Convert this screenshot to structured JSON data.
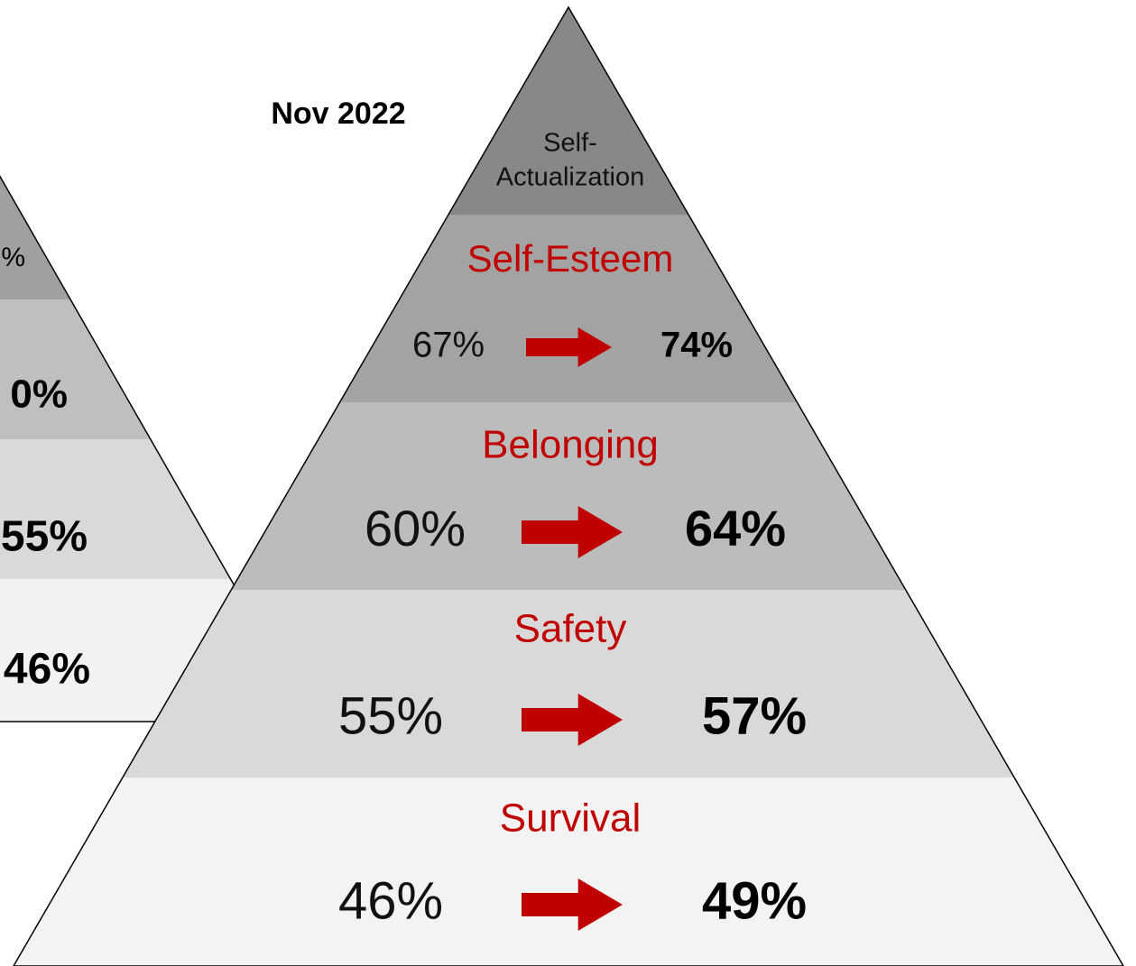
{
  "title": "Nov 2022",
  "back_pyramid": {
    "labels": [
      "%",
      "0%",
      "55%",
      "46%"
    ]
  },
  "pyramid": {
    "top": {
      "label_lines": [
        "Self-",
        "Actualization"
      ]
    },
    "levels": [
      {
        "name": "Self-Esteem",
        "from": "67%",
        "to": "74%"
      },
      {
        "name": "Belonging",
        "from": "60%",
        "to": "64%"
      },
      {
        "name": "Safety",
        "from": "55%",
        "to": "57%"
      },
      {
        "name": "Survival",
        "from": "46%",
        "to": "49%"
      }
    ]
  }
}
